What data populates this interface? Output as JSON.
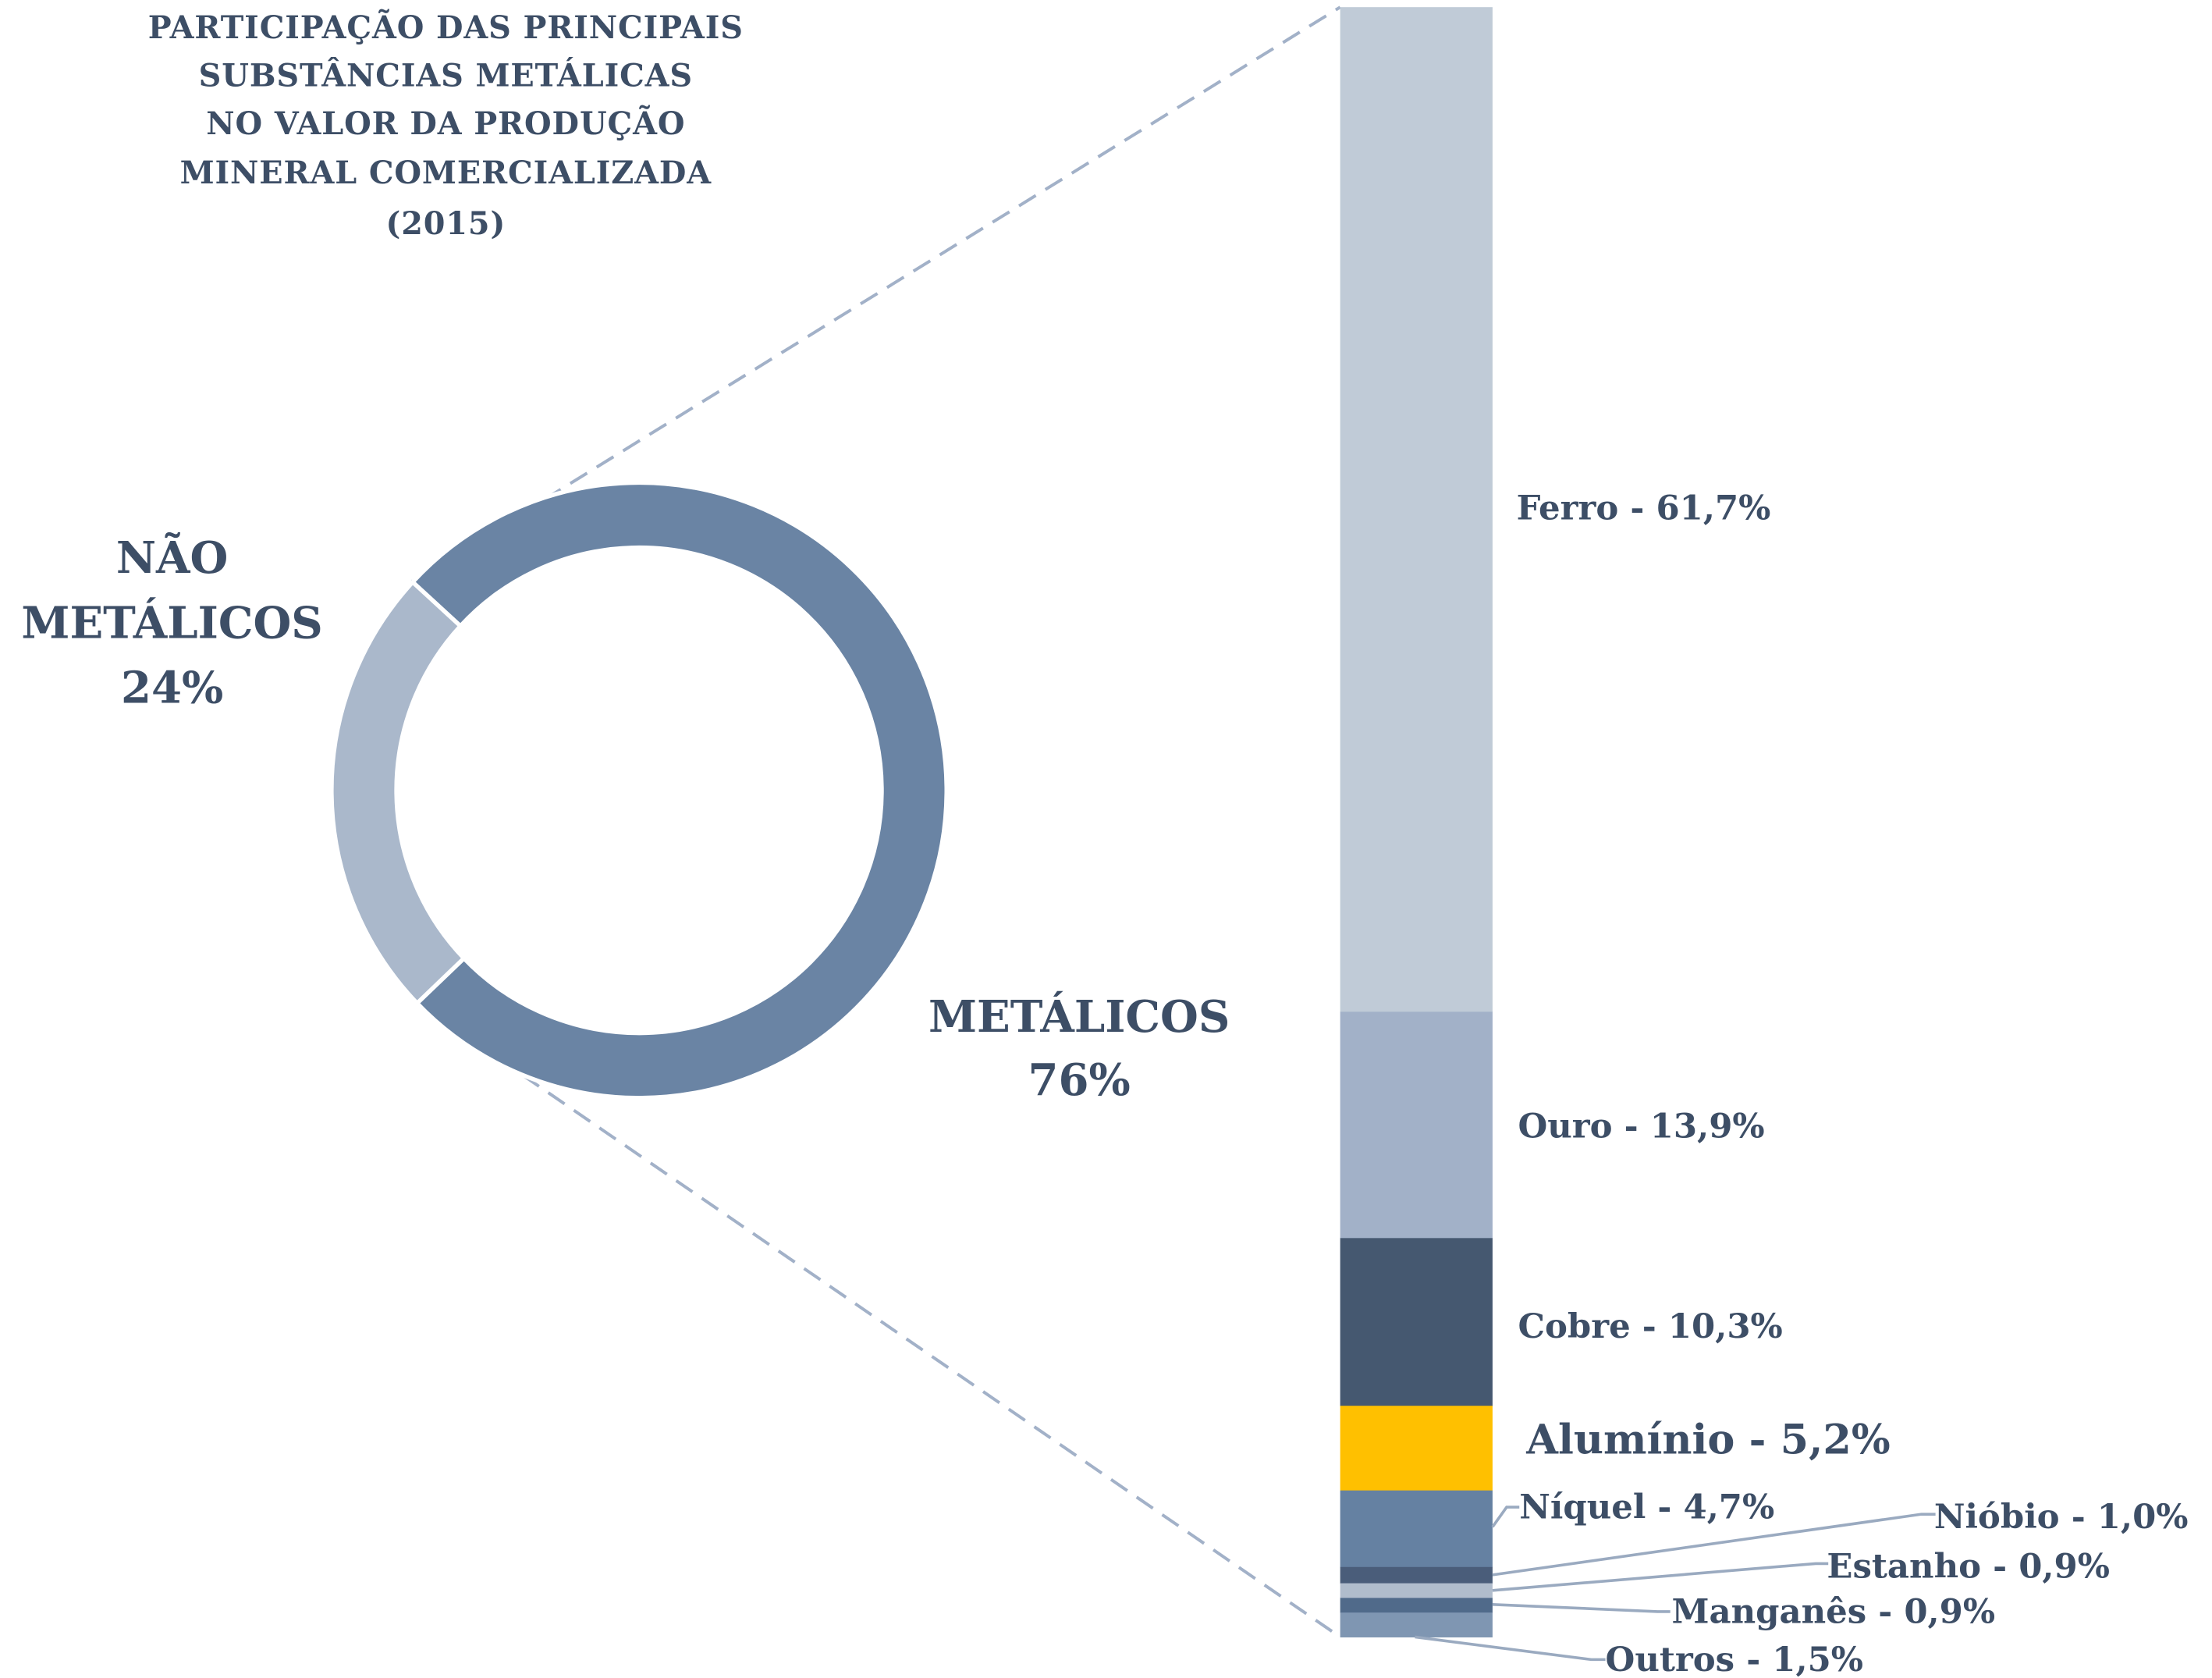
{
  "chart_data": [
    {
      "type": "pie",
      "subtype": "donut",
      "title": [
        "PARTICIPAÇÃO DAS PRINCIPAIS",
        "SUBSTÂNCIAS METÁLICAS",
        "NO VALOR DA PRODUÇÃO",
        "MINERAL COMERCIALIZADA",
        "(2015)"
      ],
      "slices": [
        {
          "name": "METÁLICOS",
          "value": 76,
          "label": "76%",
          "color": "#6a84a4"
        },
        {
          "name_lines": [
            "NÃO",
            "METÁLICOS"
          ],
          "name": "NÃO METÁLICOS",
          "value": 24,
          "label": "24%",
          "color": "#aab8cb"
        }
      ]
    },
    {
      "type": "bar",
      "subtype": "stacked-100",
      "categories": [
        "Ferro",
        "Ouro",
        "Cobre",
        "Alumínio",
        "Níquel",
        "Nióbio",
        "Estanho",
        "Manganês",
        "Outros"
      ],
      "values": [
        61.7,
        13.9,
        10.3,
        5.2,
        4.7,
        1.0,
        0.9,
        0.9,
        1.5
      ],
      "labels": [
        "Ferro - 61,7%",
        "Ouro - 13,9%",
        "Cobre - 10,3%",
        "Alumínio - 5,2%",
        "Níquel - 4,7%",
        "Nióbio - 1,0%",
        "Estanho - 0,9%",
        "Manganês - 0,9%",
        "Outros - 1,5%"
      ],
      "colors": [
        "#c0cbd7",
        "#a2b1c8",
        "#455870",
        "#ffc000",
        "#6581a2",
        "#4a5d7a",
        "#b0bccc",
        "#506a8a",
        "#7f96b2"
      ]
    }
  ]
}
